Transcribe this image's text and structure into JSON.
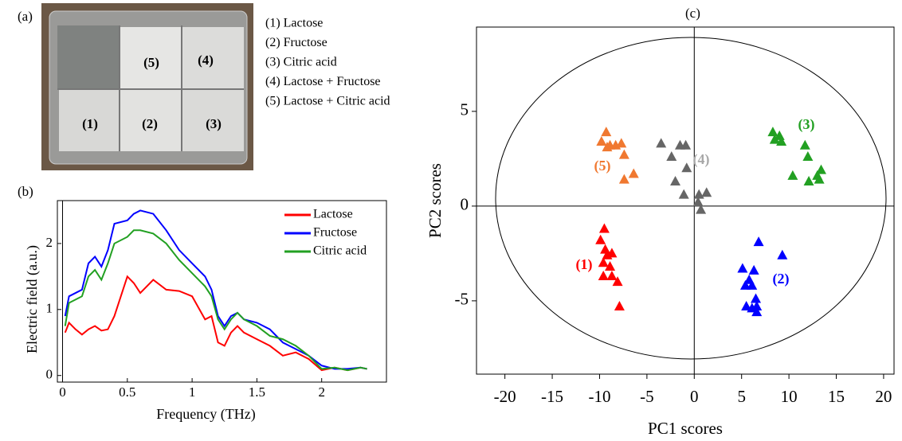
{
  "panel_a": {
    "label": "(a)",
    "legend": [
      "(1) Lactose",
      "(2) Fructose",
      "(3) Citric  acid",
      "(4) Lactose + Fructose",
      "(5) Lactose + Citric acid"
    ],
    "photo_labels": [
      "(5)",
      "(4)",
      "(1)",
      "(2)",
      "(3)"
    ]
  },
  "chart_data": [
    {
      "type": "line",
      "title": "(b)",
      "xlabel": "Frequency (THz)",
      "ylabel": "Electric field (a.u.)",
      "x": [
        0.02,
        0.05,
        0.1,
        0.15,
        0.2,
        0.25,
        0.3,
        0.35,
        0.4,
        0.5,
        0.55,
        0.6,
        0.7,
        0.8,
        0.9,
        1.0,
        1.1,
        1.15,
        1.2,
        1.25,
        1.3,
        1.35,
        1.4,
        1.5,
        1.6,
        1.7,
        1.8,
        1.9,
        2.0,
        2.1,
        2.2,
        2.3,
        2.35
      ],
      "series": [
        {
          "name": "Lactose",
          "color": "#ff0000",
          "values": [
            0.65,
            0.8,
            0.7,
            0.62,
            0.7,
            0.75,
            0.68,
            0.7,
            0.9,
            1.5,
            1.4,
            1.25,
            1.45,
            1.3,
            1.28,
            1.2,
            0.85,
            0.9,
            0.5,
            0.45,
            0.65,
            0.75,
            0.65,
            0.55,
            0.45,
            0.3,
            0.35,
            0.25,
            0.08,
            0.12,
            0.08,
            0.12,
            0.1
          ]
        },
        {
          "name": "Fructose",
          "color": "#0000ff",
          "values": [
            0.9,
            1.2,
            1.25,
            1.3,
            1.7,
            1.8,
            1.65,
            1.9,
            2.3,
            2.35,
            2.45,
            2.5,
            2.45,
            2.2,
            1.9,
            1.7,
            1.5,
            1.3,
            0.9,
            0.75,
            0.9,
            0.95,
            0.85,
            0.8,
            0.7,
            0.5,
            0.4,
            0.3,
            0.15,
            0.1,
            0.1,
            0.12,
            0.1
          ]
        },
        {
          "name": "Citric  acid",
          "color": "#22a022",
          "values": [
            0.75,
            1.1,
            1.15,
            1.2,
            1.5,
            1.6,
            1.45,
            1.7,
            2.0,
            2.1,
            2.2,
            2.2,
            2.15,
            2.0,
            1.75,
            1.55,
            1.35,
            1.2,
            0.85,
            0.7,
            0.85,
            0.95,
            0.85,
            0.75,
            0.6,
            0.55,
            0.45,
            0.3,
            0.1,
            0.12,
            0.08,
            0.12,
            0.1
          ]
        }
      ],
      "xlim": [
        -0.04,
        2.5
      ],
      "ylim": [
        -0.1,
        2.65
      ],
      "xticks": [
        0,
        0.5,
        1,
        1.5,
        2
      ],
      "yticks": [
        0,
        1,
        2
      ]
    },
    {
      "type": "scatter",
      "title": "(c)",
      "xlabel": "PC1 scores",
      "ylabel": "PC2 scores",
      "series": [
        {
          "name": "(1)",
          "color": "#ff0000",
          "x": [
            -9.5,
            -9.9,
            -9.4,
            -9.2,
            -8.7,
            -9.6,
            -8.9,
            -9.6,
            -8.7,
            -8.1,
            -7.9
          ],
          "y": [
            -1.2,
            -1.8,
            -2.3,
            -2.6,
            -2.5,
            -3.0,
            -3.2,
            -3.7,
            -3.7,
            -4.0,
            -5.3
          ]
        },
        {
          "name": "(2)",
          "color": "#0000ff",
          "x": [
            6.8,
            9.3,
            5.1,
            6.3,
            5.8,
            5.4,
            6.1,
            6.5,
            5.5,
            6.1,
            6.6,
            6.6
          ],
          "y": [
            -1.9,
            -2.6,
            -3.3,
            -3.4,
            -3.9,
            -4.2,
            -4.2,
            -4.9,
            -5.3,
            -5.4,
            -5.6,
            -5.3
          ]
        },
        {
          "name": "(3)",
          "color": "#22a022",
          "x": [
            8.3,
            9.0,
            8.5,
            9.2,
            11.7,
            12.0,
            10.4,
            13.4,
            13.0,
            12.1,
            13.2
          ],
          "y": [
            3.9,
            3.7,
            3.5,
            3.4,
            3.2,
            2.6,
            1.6,
            1.9,
            1.6,
            1.3,
            1.4
          ]
        },
        {
          "name": "(4)",
          "color": "#666666",
          "label_color": "#a8a8a8",
          "x": [
            -3.5,
            -1.5,
            -0.9,
            -2.4,
            -2.0,
            -1.1,
            0.5,
            1.3,
            0.4,
            0.7,
            -0.8
          ],
          "y": [
            3.3,
            3.2,
            3.2,
            2.6,
            1.3,
            0.6,
            0.6,
            0.7,
            0.2,
            -0.2,
            2.0
          ]
        },
        {
          "name": "(5)",
          "color": "#f07830",
          "x": [
            -9.3,
            -9.8,
            -8.9,
            -8.3,
            -7.7,
            -7.4,
            -6.4,
            -7.4,
            -9.2
          ],
          "y": [
            3.9,
            3.4,
            3.2,
            3.2,
            3.3,
            2.7,
            1.7,
            1.4,
            3.1
          ]
        }
      ],
      "xlim": [
        -23,
        21.1
      ],
      "ylim": [
        -8.87,
        9.45
      ],
      "xticks": [
        -20,
        -15,
        -10,
        -5,
        0,
        5,
        10,
        15,
        20
      ],
      "yticks": [
        -5,
        0,
        5
      ]
    }
  ]
}
